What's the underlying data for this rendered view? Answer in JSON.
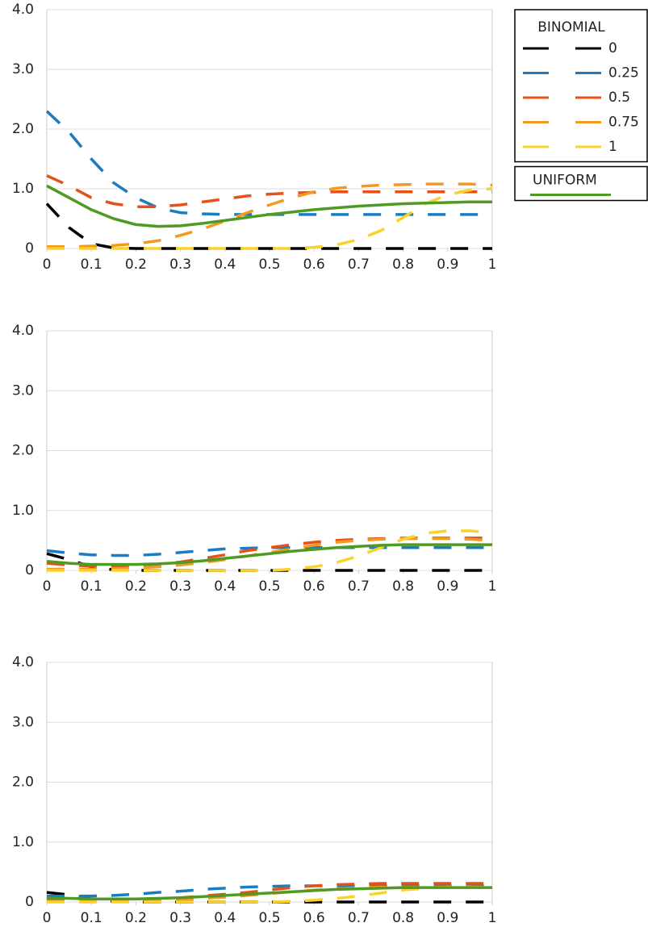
{
  "chart_data": [
    {
      "type": "line",
      "legend": "right",
      "legend_title": "BINOMIAL",
      "x": [
        0,
        0.05,
        0.1,
        0.15,
        0.2,
        0.25,
        0.3,
        0.35,
        0.4,
        0.45,
        0.5,
        0.55,
        0.6,
        0.65,
        0.7,
        0.75,
        0.8,
        0.85,
        0.9,
        0.95,
        1
      ],
      "xlim": [
        0,
        1
      ],
      "xticks": [
        0,
        0.1,
        0.2,
        0.3,
        0.4,
        0.5,
        0.6,
        0.7,
        0.8,
        0.9,
        1
      ],
      "ylim": [
        0,
        4
      ],
      "yticks": [
        0,
        {
          "value": 1,
          "label": "1.0"
        },
        {
          "value": 2,
          "label": "2.0"
        },
        {
          "value": 3,
          "label": "3.0"
        },
        {
          "value": 4,
          "label": "4.0"
        }
      ],
      "grid": true,
      "series": [
        {
          "name": "0",
          "color": "#000000",
          "dashed": true,
          "values": [
            0.75,
            0.35,
            0.08,
            0.01,
            0,
            0,
            0,
            0,
            0,
            0,
            0,
            0,
            0,
            0,
            0,
            0,
            0,
            0,
            0,
            0,
            0
          ]
        },
        {
          "name": "0.25",
          "color": "#1a7cc1",
          "dashed": true,
          "values": [
            2.3,
            1.95,
            1.5,
            1.1,
            0.85,
            0.68,
            0.6,
            0.58,
            0.57,
            0.57,
            0.57,
            0.57,
            0.57,
            0.57,
            0.57,
            0.57,
            0.57,
            0.57,
            0.57,
            0.57,
            0.57
          ]
        },
        {
          "name": "0.5",
          "color": "#e8501a",
          "dashed": true,
          "values": [
            1.22,
            1.05,
            0.85,
            0.75,
            0.7,
            0.7,
            0.73,
            0.78,
            0.83,
            0.88,
            0.91,
            0.93,
            0.94,
            0.95,
            0.95,
            0.95,
            0.95,
            0.95,
            0.95,
            0.95,
            0.95
          ]
        },
        {
          "name": "0.75",
          "color": "#f39a1e",
          "dashed": true,
          "values": [
            0.03,
            0.03,
            0.04,
            0.05,
            0.08,
            0.13,
            0.22,
            0.33,
            0.46,
            0.6,
            0.73,
            0.85,
            0.95,
            1.01,
            1.04,
            1.06,
            1.07,
            1.08,
            1.08,
            1.08,
            1.06
          ]
        },
        {
          "name": "1",
          "color": "#fbd22b",
          "dashed": true,
          "values": [
            0,
            0,
            0,
            0,
            0,
            0,
            0,
            0,
            0,
            0,
            0,
            0,
            0.02,
            0.06,
            0.15,
            0.3,
            0.52,
            0.75,
            0.9,
            0.98,
            1.0
          ]
        },
        {
          "name": "UNIFORM",
          "color": "#4e9a22",
          "dashed": false,
          "values": [
            1.05,
            0.85,
            0.65,
            0.5,
            0.4,
            0.37,
            0.38,
            0.42,
            0.47,
            0.52,
            0.57,
            0.61,
            0.65,
            0.68,
            0.71,
            0.73,
            0.75,
            0.76,
            0.77,
            0.78,
            0.78
          ]
        }
      ]
    },
    {
      "type": "line",
      "x": [
        0,
        0.05,
        0.1,
        0.15,
        0.2,
        0.25,
        0.3,
        0.35,
        0.4,
        0.45,
        0.5,
        0.55,
        0.6,
        0.65,
        0.7,
        0.75,
        0.8,
        0.85,
        0.9,
        0.95,
        1
      ],
      "xlim": [
        0,
        1
      ],
      "xticks": [
        0,
        0.1,
        0.2,
        0.3,
        0.4,
        0.5,
        0.6,
        0.7,
        0.8,
        0.9,
        1
      ],
      "ylim": [
        0,
        4
      ],
      "yticks": [
        0,
        {
          "value": 1,
          "label": "1.0"
        },
        {
          "value": 2,
          "label": "2.0"
        },
        {
          "value": 3,
          "label": "3.0"
        },
        {
          "value": 4,
          "label": "4.0"
        }
      ],
      "grid": true,
      "series": [
        {
          "color": "#000000",
          "dashed": true,
          "values": [
            0.28,
            0.18,
            0.06,
            0.01,
            0,
            0,
            0,
            0,
            0,
            0,
            0,
            0,
            0,
            0,
            0,
            0,
            0,
            0,
            0,
            0,
            0
          ]
        },
        {
          "color": "#1a7cc1",
          "dashed": true,
          "values": [
            0.33,
            0.29,
            0.26,
            0.25,
            0.25,
            0.27,
            0.3,
            0.33,
            0.36,
            0.37,
            0.38,
            0.38,
            0.38,
            0.38,
            0.38,
            0.38,
            0.38,
            0.38,
            0.38,
            0.38,
            0.38
          ]
        },
        {
          "color": "#e8501a",
          "dashed": true,
          "values": [
            0.12,
            0.09,
            0.07,
            0.07,
            0.08,
            0.1,
            0.14,
            0.2,
            0.26,
            0.33,
            0.38,
            0.43,
            0.47,
            0.5,
            0.52,
            0.53,
            0.54,
            0.54,
            0.54,
            0.54,
            0.54
          ]
        },
        {
          "color": "#f39a1e",
          "dashed": true,
          "values": [
            0.02,
            0.02,
            0.02,
            0.03,
            0.04,
            0.06,
            0.09,
            0.13,
            0.18,
            0.24,
            0.3,
            0.36,
            0.42,
            0.47,
            0.5,
            0.52,
            0.53,
            0.53,
            0.53,
            0.52,
            0.5
          ]
        },
        {
          "color": "#fbd22b",
          "dashed": true,
          "values": [
            0,
            0,
            0,
            0,
            0,
            0,
            0,
            0,
            0,
            0,
            0,
            0.02,
            0.06,
            0.13,
            0.24,
            0.38,
            0.52,
            0.62,
            0.66,
            0.66,
            0.63
          ]
        },
        {
          "color": "#4e9a22",
          "dashed": false,
          "values": [
            0.15,
            0.12,
            0.1,
            0.1,
            0.1,
            0.11,
            0.13,
            0.16,
            0.2,
            0.24,
            0.28,
            0.32,
            0.35,
            0.38,
            0.4,
            0.42,
            0.43,
            0.43,
            0.43,
            0.43,
            0.43
          ]
        }
      ]
    },
    {
      "type": "line",
      "x": [
        0,
        0.05,
        0.1,
        0.15,
        0.2,
        0.25,
        0.3,
        0.35,
        0.4,
        0.45,
        0.5,
        0.55,
        0.6,
        0.65,
        0.7,
        0.75,
        0.8,
        0.85,
        0.9,
        0.95,
        1
      ],
      "xlim": [
        0,
        1
      ],
      "xticks": [
        0,
        0.1,
        0.2,
        0.3,
        0.4,
        0.5,
        0.6,
        0.7,
        0.8,
        0.9,
        1
      ],
      "ylim": [
        0,
        4
      ],
      "yticks": [
        0,
        {
          "value": 1,
          "label": "1.0"
        },
        {
          "value": 2,
          "label": "2.0"
        },
        {
          "value": 3,
          "label": "3.0"
        },
        {
          "value": 4,
          "label": "4.0"
        }
      ],
      "grid": true,
      "series": [
        {
          "color": "#000000",
          "dashed": true,
          "values": [
            0.16,
            0.12,
            0.05,
            0.01,
            0,
            0,
            0,
            0,
            0,
            0,
            0,
            0,
            0,
            0,
            0,
            0,
            0,
            0,
            0,
            0,
            0
          ]
        },
        {
          "color": "#1a7cc1",
          "dashed": true,
          "values": [
            0.1,
            0.1,
            0.1,
            0.11,
            0.13,
            0.16,
            0.18,
            0.21,
            0.23,
            0.25,
            0.26,
            0.27,
            0.27,
            0.27,
            0.27,
            0.27,
            0.27,
            0.27,
            0.27,
            0.27,
            0.27
          ]
        },
        {
          "color": "#e8501a",
          "dashed": true,
          "values": [
            0.05,
            0.04,
            0.03,
            0.03,
            0.04,
            0.05,
            0.07,
            0.1,
            0.13,
            0.16,
            0.2,
            0.24,
            0.27,
            0.29,
            0.3,
            0.31,
            0.31,
            0.31,
            0.31,
            0.31,
            0.31
          ]
        },
        {
          "color": "#f39a1e",
          "dashed": true,
          "values": [
            0.01,
            0.01,
            0.01,
            0.01,
            0.02,
            0.03,
            0.04,
            0.06,
            0.08,
            0.11,
            0.14,
            0.17,
            0.2,
            0.22,
            0.24,
            0.25,
            0.25,
            0.25,
            0.25,
            0.25,
            0.25
          ]
        },
        {
          "color": "#fbd22b",
          "dashed": true,
          "values": [
            0,
            0,
            0,
            0,
            0,
            0,
            0,
            0,
            0,
            0,
            0,
            0.01,
            0.03,
            0.06,
            0.1,
            0.15,
            0.2,
            0.23,
            0.25,
            0.25,
            0.24
          ]
        },
        {
          "color": "#4e9a22",
          "dashed": false,
          "values": [
            0.07,
            0.06,
            0.05,
            0.05,
            0.05,
            0.06,
            0.07,
            0.09,
            0.11,
            0.13,
            0.15,
            0.17,
            0.19,
            0.21,
            0.22,
            0.23,
            0.24,
            0.24,
            0.24,
            0.24,
            0.24
          ]
        }
      ]
    }
  ]
}
